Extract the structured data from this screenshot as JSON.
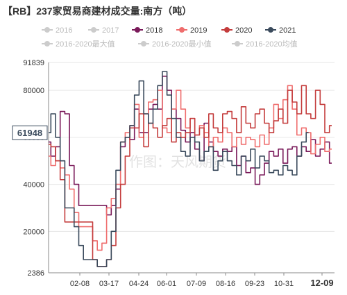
{
  "chart_data": {
    "type": "line",
    "title": "【RB】237家贸易商建材成交量:南方（吨）",
    "watermark": "作图：天风期货",
    "x_tick_labels": [
      "02-08",
      "03-17",
      "04-24",
      "06-01",
      "07-09",
      "08-16",
      "09-23",
      "10-31",
      "12-09"
    ],
    "y_ticks": [
      2386,
      20000,
      40000,
      60000,
      80000,
      91839
    ],
    "ylim": [
      2386,
      91839
    ],
    "y_marker": "61948",
    "grid": "horizontal",
    "legend_position": "top",
    "legend": [
      {
        "label": "2016",
        "color": "#cccccc",
        "visible": false
      },
      {
        "label": "2017",
        "color": "#cccccc",
        "visible": false
      },
      {
        "label": "2018",
        "color": "#7a1a5a",
        "visible": true
      },
      {
        "label": "2019",
        "color": "#ef6d6d",
        "visible": true
      },
      {
        "label": "2020",
        "color": "#c43c3c",
        "visible": true
      },
      {
        "label": "2021",
        "color": "#3a4a5c",
        "visible": true
      },
      {
        "label": "2016-2020最大值",
        "color": "#cccccc",
        "visible": false
      },
      {
        "label": "2016-2020最小值",
        "color": "#cccccc",
        "visible": false
      },
      {
        "label": "2016-2020均值",
        "color": "#cccccc",
        "visible": false
      }
    ],
    "series": [
      {
        "name": "2018",
        "color": "#7a1a5a",
        "values": [
          58000,
          52000,
          56000,
          71000,
          70000,
          48000,
          40000,
          31000,
          31000,
          31000,
          31000,
          31000,
          31000,
          27000,
          31000,
          38000,
          56000,
          60000,
          59000,
          72000,
          62000,
          62000,
          72000,
          74000,
          72000,
          86000,
          80000,
          72000,
          68000,
          63000,
          58000,
          62000,
          55000,
          50000,
          66000,
          58000,
          54000,
          52000,
          55000,
          54000,
          56000,
          48000,
          52000,
          45000,
          47000,
          40000,
          44000,
          49000,
          54000,
          52000,
          55000,
          49000,
          55000,
          56000,
          52000,
          56000,
          54000,
          59000,
          52000,
          55000,
          58000,
          49000
        ]
      },
      {
        "name": "2019",
        "color": "#ef6d6d",
        "values": [
          52000,
          48000,
          50000,
          47000,
          44000,
          38000,
          28000,
          22000,
          22000,
          22000,
          16000,
          12000,
          15000,
          30000,
          34000,
          40000,
          58000,
          62000,
          65000,
          74000,
          60000,
          70000,
          75000,
          76000,
          80000,
          64000,
          62000,
          72000,
          80000,
          72000,
          64000,
          68000,
          61000,
          65000,
          62000,
          56000,
          60000,
          58000,
          64000,
          62000,
          56000,
          60000,
          57000,
          60000,
          59000,
          56000,
          61000,
          57000,
          64000,
          74000,
          68000,
          76000,
          82000,
          72000,
          61000,
          64000,
          62000,
          53000,
          57000,
          60000,
          54000,
          55000
        ]
      },
      {
        "name": "2020",
        "color": "#c43c3c",
        "values": [
          57000,
          56000,
          50000,
          42000,
          24000,
          24000,
          24000,
          24000,
          24000,
          24000,
          8000,
          5000,
          5000,
          8000,
          14000,
          30000,
          40000,
          52000,
          64000,
          64000,
          70000,
          56000,
          66000,
          64000,
          60000,
          65000,
          68000,
          58000,
          62000,
          60000,
          62000,
          68000,
          61000,
          64000,
          60000,
          70000,
          64000,
          62000,
          70000,
          71000,
          68000,
          62000,
          73000,
          66000,
          64000,
          70000,
          72000,
          66000,
          62000,
          67000,
          72000,
          66000,
          80000,
          75000,
          70000,
          82000,
          70000,
          68000,
          80000,
          74000,
          62000,
          65000
        ]
      },
      {
        "name": "2021",
        "color": "#3a4a5c",
        "values": [
          62000,
          70000,
          60000,
          50000,
          30000,
          30000,
          22000,
          14000,
          8000,
          8000,
          8000,
          5000,
          5000,
          8000,
          20000,
          46000,
          58000,
          60000,
          65000,
          78000,
          84000,
          70000,
          66000,
          72000,
          82000,
          88000,
          78000,
          68000,
          60000,
          54000,
          52000,
          60000,
          58000,
          50000,
          54000,
          56000,
          46000,
          50000,
          54000,
          50000,
          48000,
          44000,
          52000,
          50000,
          55000,
          47000,
          52000,
          50000,
          45000,
          46000,
          44000,
          48000,
          46000,
          44000,
          52000,
          58000,
          62000
        ]
      }
    ]
  }
}
